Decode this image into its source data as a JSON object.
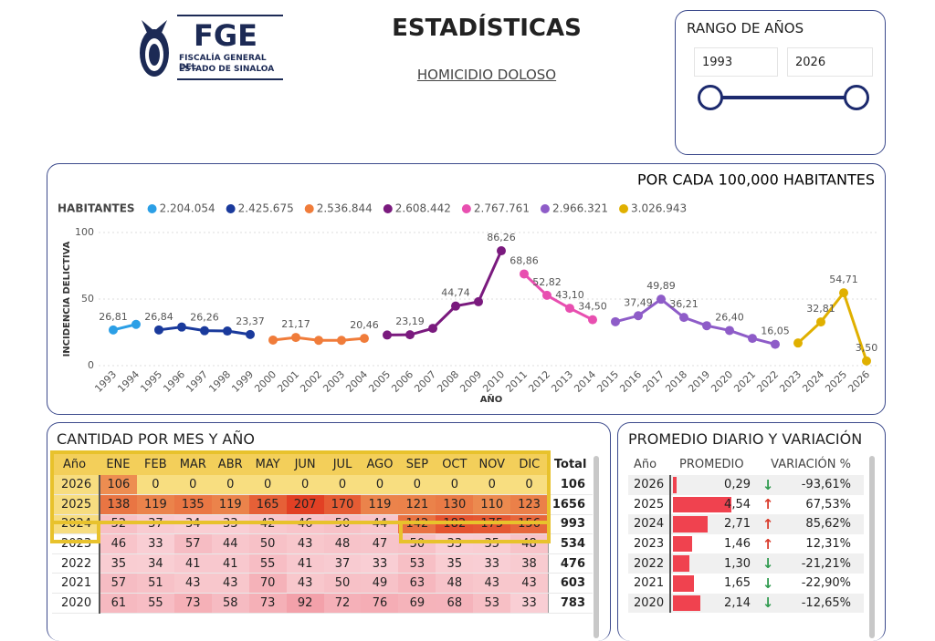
{
  "header": {
    "logo": "FGE",
    "org_line1": "FISCALÍA GENERAL DEL",
    "org_line2": "ESTADO DE SINALOA",
    "title": "ESTADÍSTICAS",
    "subtitle": "HOMICIDIO DOLOSO"
  },
  "range": {
    "title": "RANGO DE AÑOS",
    "from": "1993",
    "to": "2026"
  },
  "chart_data": {
    "type": "line",
    "title": "POR CADA 100,000 HABITANTES",
    "legend_title": "HABITANTES",
    "y_label": "INCIDENCIA DELICTIVA",
    "x_label": "AÑO",
    "categories": [
      "1993",
      "1994",
      "1995",
      "1996",
      "1997",
      "1998",
      "1999",
      "2000",
      "2001",
      "2002",
      "2003",
      "2004",
      "2005",
      "2006",
      "2007",
      "2008",
      "2009",
      "2010",
      "2011",
      "2012",
      "2013",
      "2014",
      "2015",
      "2016",
      "2017",
      "2018",
      "2019",
      "2020",
      "2021",
      "2022",
      "2023",
      "2024",
      "2025",
      "2026"
    ],
    "ylim": [
      0,
      100
    ],
    "yticks": [
      0,
      50,
      100
    ],
    "grid": true,
    "series": [
      {
        "name": "2.204.054",
        "color": "#2b9fe6",
        "values": [
          26.81,
          31,
          null,
          null,
          null,
          null,
          null,
          null,
          null,
          null,
          null,
          null,
          null,
          null,
          null,
          null,
          null,
          null,
          null,
          null,
          null,
          null,
          null,
          null,
          null,
          null,
          null,
          null,
          null,
          null,
          null,
          null,
          null,
          null
        ],
        "value_labels": [
          "26,81",
          null,
          null,
          null,
          null,
          null,
          null,
          null,
          null,
          null,
          null,
          null,
          null,
          null,
          null,
          null,
          null,
          null,
          null,
          null,
          null,
          null,
          null,
          null,
          null,
          null,
          null,
          null,
          null,
          null,
          null,
          null,
          null,
          null
        ]
      },
      {
        "name": "2.425.675",
        "color": "#1a3a9c",
        "values": [
          null,
          null,
          26.84,
          29,
          26.26,
          26,
          23.37,
          null,
          null,
          null,
          null,
          null,
          null,
          null,
          null,
          null,
          null,
          null,
          null,
          null,
          null,
          null,
          null,
          null,
          null,
          null,
          null,
          null,
          null,
          null,
          null,
          null,
          null,
          null
        ],
        "value_labels": [
          null,
          null,
          "26,84",
          null,
          "26,26",
          null,
          "23,37",
          null,
          null,
          null,
          null,
          null,
          null,
          null,
          null,
          null,
          null,
          null,
          null,
          null,
          null,
          null,
          null,
          null,
          null,
          null,
          null,
          null,
          null,
          null,
          null,
          null,
          null,
          null
        ]
      },
      {
        "name": "2.536.844",
        "color": "#f07c3a",
        "values": [
          null,
          null,
          null,
          null,
          null,
          null,
          null,
          19.2,
          21.17,
          19,
          19,
          20.46,
          null,
          null,
          null,
          null,
          null,
          null,
          null,
          null,
          null,
          null,
          null,
          null,
          null,
          null,
          null,
          null,
          null,
          null,
          null,
          null,
          null,
          null
        ],
        "value_labels": [
          null,
          null,
          null,
          null,
          null,
          null,
          null,
          null,
          "21,17",
          null,
          null,
          "20,46",
          null,
          null,
          null,
          null,
          null,
          null,
          null,
          null,
          null,
          null,
          null,
          null,
          null,
          null,
          null,
          null,
          null,
          null,
          null,
          null,
          null,
          null
        ]
      },
      {
        "name": "2.608.442",
        "color": "#7a1a7e",
        "values": [
          null,
          null,
          null,
          null,
          null,
          null,
          null,
          null,
          null,
          null,
          null,
          null,
          23,
          23.19,
          28,
          44.74,
          48,
          86.26,
          null,
          null,
          null,
          null,
          null,
          null,
          null,
          null,
          null,
          null,
          null,
          null,
          null,
          null,
          null,
          null
        ],
        "value_labels": [
          null,
          null,
          null,
          null,
          null,
          null,
          null,
          null,
          null,
          null,
          null,
          null,
          null,
          "23,19",
          null,
          "44,74",
          null,
          "86,26",
          null,
          null,
          null,
          null,
          null,
          null,
          null,
          null,
          null,
          null,
          null,
          null,
          null,
          null,
          null,
          null
        ]
      },
      {
        "name": "2.767.761",
        "color": "#e84fb0",
        "values": [
          null,
          null,
          null,
          null,
          null,
          null,
          null,
          null,
          null,
          null,
          null,
          null,
          null,
          null,
          null,
          null,
          null,
          null,
          68.86,
          52.82,
          43.1,
          34.5,
          null,
          null,
          null,
          null,
          null,
          null,
          null,
          null,
          null,
          null,
          null,
          null
        ],
        "value_labels": [
          null,
          null,
          null,
          null,
          null,
          null,
          null,
          null,
          null,
          null,
          null,
          null,
          null,
          null,
          null,
          null,
          null,
          null,
          "68,86",
          "52,82",
          "43,10",
          "34,50",
          null,
          null,
          null,
          null,
          null,
          null,
          null,
          null,
          null,
          null,
          null,
          null
        ]
      },
      {
        "name": "2.966.321",
        "color": "#8e5cc8",
        "values": [
          null,
          null,
          null,
          null,
          null,
          null,
          null,
          null,
          null,
          null,
          null,
          null,
          null,
          null,
          null,
          null,
          null,
          null,
          null,
          null,
          null,
          null,
          33,
          37.49,
          49.89,
          36.21,
          30,
          26.4,
          20.5,
          16.05,
          null,
          null,
          null,
          null
        ],
        "value_labels": [
          null,
          null,
          null,
          null,
          null,
          null,
          null,
          null,
          null,
          null,
          null,
          null,
          null,
          null,
          null,
          null,
          null,
          null,
          null,
          null,
          null,
          null,
          null,
          "37,49",
          "49,89",
          "36,21",
          null,
          "26,40",
          null,
          "16,05",
          null,
          null,
          null,
          null
        ]
      },
      {
        "name": "3.026.943",
        "color": "#e0b000",
        "values": [
          null,
          null,
          null,
          null,
          null,
          null,
          null,
          null,
          null,
          null,
          null,
          null,
          null,
          null,
          null,
          null,
          null,
          null,
          null,
          null,
          null,
          null,
          null,
          null,
          null,
          null,
          null,
          null,
          null,
          null,
          17,
          32.81,
          54.71,
          3.5
        ],
        "value_labels": [
          null,
          null,
          null,
          null,
          null,
          null,
          null,
          null,
          null,
          null,
          null,
          null,
          null,
          null,
          null,
          null,
          null,
          null,
          null,
          null,
          null,
          null,
          null,
          null,
          null,
          null,
          null,
          null,
          null,
          null,
          null,
          "32,81",
          "54,71",
          "3,50"
        ]
      }
    ]
  },
  "monthly": {
    "title": "CANTIDAD POR MES Y AÑO",
    "columns": [
      "Año",
      "ENE",
      "FEB",
      "MAR",
      "ABR",
      "MAY",
      "JUN",
      "JUL",
      "AGO",
      "SEP",
      "OCT",
      "NOV",
      "DIC",
      "Total"
    ],
    "rows": [
      [
        2026,
        106,
        0,
        0,
        0,
        0,
        0,
        0,
        0,
        0,
        0,
        0,
        0,
        106
      ],
      [
        2025,
        138,
        119,
        135,
        119,
        165,
        207,
        170,
        119,
        121,
        130,
        110,
        123,
        1656
      ],
      [
        2024,
        52,
        37,
        34,
        33,
        42,
        46,
        50,
        44,
        142,
        182,
        175,
        156,
        993
      ],
      [
        2023,
        46,
        33,
        57,
        44,
        50,
        43,
        48,
        47,
        50,
        33,
        35,
        48,
        534
      ],
      [
        2022,
        35,
        34,
        41,
        41,
        55,
        41,
        37,
        33,
        53,
        35,
        33,
        38,
        476
      ],
      [
        2021,
        57,
        51,
        43,
        43,
        70,
        43,
        50,
        49,
        63,
        48,
        43,
        43,
        603
      ],
      [
        2020,
        61,
        55,
        73,
        58,
        73,
        92,
        72,
        76,
        69,
        68,
        53,
        33,
        783
      ]
    ]
  },
  "daily": {
    "title": "PROMEDIO DIARIO Y VARIACIÓN",
    "columns": [
      "Año",
      "PROMEDIO",
      "VARIACIÓN %"
    ],
    "rows": [
      {
        "year": 2026,
        "average": 0.29,
        "average_label": "0,29",
        "change": -93.61,
        "change_label": "-93,61%"
      },
      {
        "year": 2025,
        "average": 4.54,
        "average_label": "4,54",
        "change": 67.53,
        "change_label": "67,53%"
      },
      {
        "year": 2024,
        "average": 2.71,
        "average_label": "2,71",
        "change": 85.62,
        "change_label": "85,62%"
      },
      {
        "year": 2023,
        "average": 1.46,
        "average_label": "1,46",
        "change": 12.31,
        "change_label": "12,31%"
      },
      {
        "year": 2022,
        "average": 1.3,
        "average_label": "1,30",
        "change": -21.21,
        "change_label": "-21,21%"
      },
      {
        "year": 2021,
        "average": 1.65,
        "average_label": "1,65",
        "change": -22.9,
        "change_label": "-22,90%"
      },
      {
        "year": 2020,
        "average": 2.14,
        "average_label": "2,14",
        "change": -12.65,
        "change_label": "-12,65%"
      }
    ]
  }
}
